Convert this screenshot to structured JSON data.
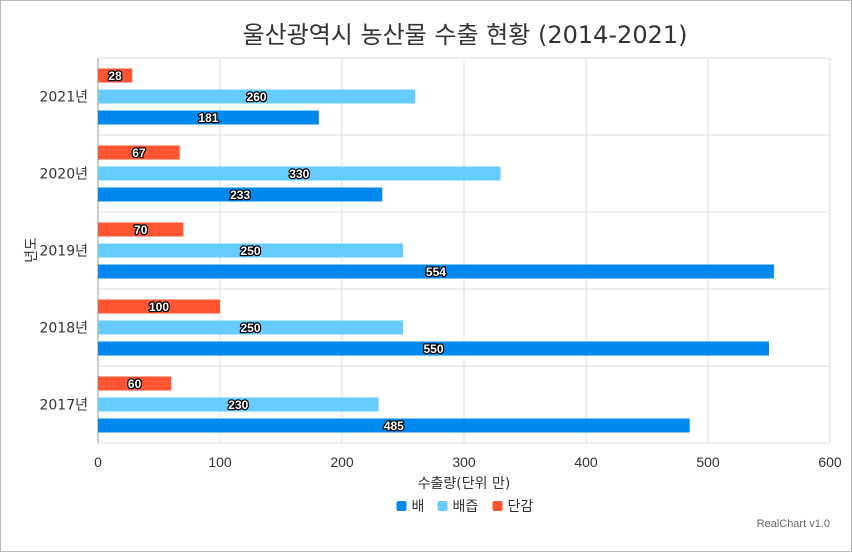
{
  "chart_data": {
    "type": "bar",
    "orientation": "horizontal",
    "title": "울산광역시 농산물 수출 현황 (2014-2021)",
    "xlabel": "수출량(단위 만)",
    "ylabel": "년도",
    "categories": [
      "2017년",
      "2018년",
      "2019년",
      "2020년",
      "2021년"
    ],
    "series": [
      {
        "name": "배",
        "color": "#0088ee",
        "values": [
          485,
          550,
          554,
          233,
          181
        ]
      },
      {
        "name": "배즙",
        "color": "#66ccff",
        "values": [
          230,
          250,
          250,
          330,
          260
        ]
      },
      {
        "name": "단감",
        "color": "#ff5533",
        "values": [
          60,
          100,
          70,
          67,
          28
        ]
      }
    ],
    "xlim": [
      0,
      600
    ],
    "xticks": [
      0,
      100,
      200,
      300,
      400,
      500,
      600
    ],
    "grid": true,
    "legend": "bottom"
  },
  "credit": "RealChart v1.0"
}
